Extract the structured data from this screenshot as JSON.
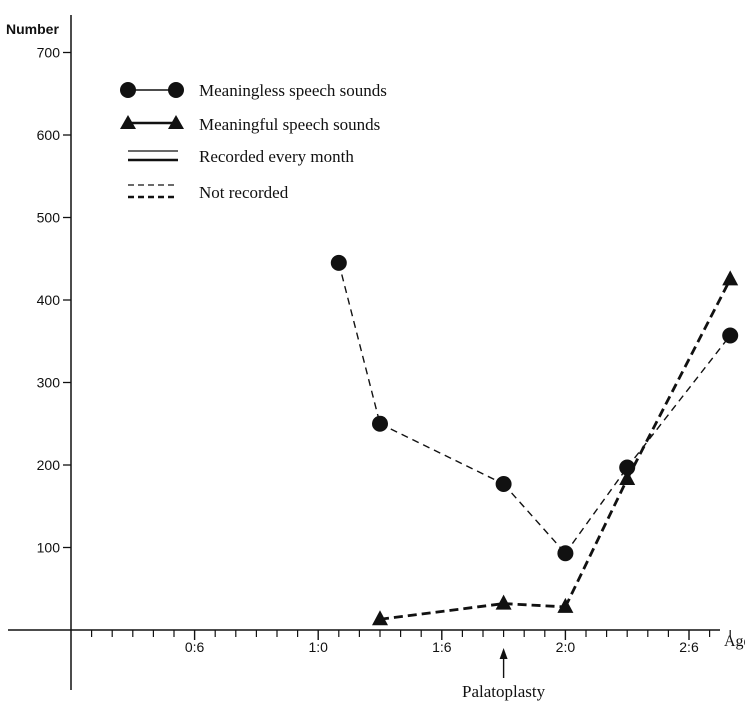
{
  "chart_data": {
    "type": "line",
    "ylabel": "Number",
    "xlabel": "Age",
    "ylim": [
      0,
      720
    ],
    "xlim_months": [
      0,
      33
    ],
    "y_ticks": [
      100,
      200,
      300,
      400,
      500,
      600,
      700
    ],
    "x_tick_labels": [
      {
        "months": 6,
        "label": "0:6"
      },
      {
        "months": 12,
        "label": "1:0"
      },
      {
        "months": 18,
        "label": "1:6"
      },
      {
        "months": 24,
        "label": "2:0"
      },
      {
        "months": 30,
        "label": "2:6"
      }
    ],
    "x_minor_tick_months": [
      1,
      2,
      3,
      4,
      5,
      7,
      8,
      9,
      10,
      11,
      13,
      14,
      15,
      16,
      17,
      19,
      20,
      21,
      22,
      23,
      25,
      26,
      27,
      28,
      29,
      31,
      32
    ],
    "series": [
      {
        "name": "Meaningless speech sounds",
        "marker": "circle",
        "line": "dashed-thin",
        "points": [
          {
            "age_months": 13,
            "value": 445
          },
          {
            "age_months": 15,
            "value": 250
          },
          {
            "age_months": 21,
            "value": 177
          },
          {
            "age_months": 24,
            "value": 93
          },
          {
            "age_months": 27,
            "value": 197
          },
          {
            "age_months": 32,
            "value": 357
          }
        ]
      },
      {
        "name": "Meaningful speech sounds",
        "marker": "triangle",
        "line": "dashed-thick",
        "points": [
          {
            "age_months": 15,
            "value": 13
          },
          {
            "age_months": 21,
            "value": 32
          },
          {
            "age_months": 24,
            "value": 28
          },
          {
            "age_months": 27,
            "value": 183
          },
          {
            "age_months": 32,
            "value": 425
          }
        ]
      }
    ],
    "legend": [
      {
        "label": "Meaningless speech sounds",
        "sample": "circle-solid"
      },
      {
        "label": "Meaningful speech sounds",
        "sample": "triangle-solid"
      },
      {
        "label": "Recorded every month",
        "sample": "solid-lines"
      },
      {
        "label": "Not recorded",
        "sample": "dashed-lines"
      }
    ],
    "legend_position": "top-left",
    "annotation": {
      "label": "Palatoplasty",
      "age_months": 21
    },
    "grid": false
  }
}
